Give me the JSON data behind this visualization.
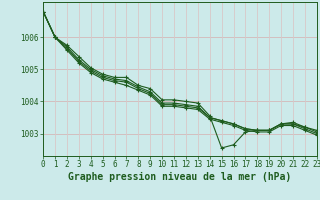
{
  "title": "Graphe pression niveau de la mer (hPa)",
  "background_color": "#cceaea",
  "grid_color_h": "#d4b8b8",
  "grid_color_v": "#d8c8c8",
  "line_color": "#1e5c1e",
  "marker_color": "#1e5c1e",
  "xlim": [
    0,
    23
  ],
  "ylim": [
    1002.3,
    1007.1
  ],
  "yticks": [
    1003,
    1004,
    1005,
    1006
  ],
  "xticks": [
    0,
    1,
    2,
    3,
    4,
    5,
    6,
    7,
    8,
    9,
    10,
    11,
    12,
    13,
    14,
    15,
    16,
    17,
    18,
    19,
    20,
    21,
    22,
    23
  ],
  "series": [
    {
      "x": [
        0,
        1,
        2,
        3,
        4,
        5,
        6,
        7,
        8,
        9,
        10,
        11,
        12,
        13,
        14,
        15,
        16,
        17,
        18,
        19,
        20,
        21,
        22,
        23
      ],
      "y": [
        1006.8,
        1006.0,
        1005.75,
        1005.4,
        1005.05,
        1004.85,
        1004.75,
        1004.75,
        1004.5,
        1004.4,
        1004.05,
        1004.05,
        1004.0,
        1003.95,
        1003.55,
        1002.55,
        1002.65,
        1003.05,
        1003.1,
        1003.1,
        1003.3,
        1003.35,
        1003.2,
        1003.1
      ]
    },
    {
      "x": [
        0,
        1,
        2,
        3,
        4,
        5,
        6,
        7,
        8,
        9,
        10,
        11,
        12,
        13,
        14,
        15,
        16,
        17,
        18,
        19,
        20,
        21,
        22,
        23
      ],
      "y": [
        1006.8,
        1006.0,
        1005.7,
        1005.3,
        1005.0,
        1004.8,
        1004.7,
        1004.65,
        1004.45,
        1004.3,
        1003.95,
        1003.95,
        1003.9,
        1003.85,
        1003.5,
        1003.4,
        1003.3,
        1003.15,
        1003.1,
        1003.1,
        1003.3,
        1003.3,
        1003.2,
        1003.05
      ]
    },
    {
      "x": [
        0,
        1,
        2,
        3,
        4,
        5,
        6,
        7,
        8,
        9,
        10,
        11,
        12,
        13,
        14,
        15,
        16,
        17,
        18,
        19,
        20,
        21,
        22,
        23
      ],
      "y": [
        1006.8,
        1006.0,
        1005.65,
        1005.25,
        1004.95,
        1004.75,
        1004.65,
        1004.6,
        1004.4,
        1004.25,
        1003.9,
        1003.9,
        1003.85,
        1003.8,
        1003.5,
        1003.4,
        1003.3,
        1003.15,
        1003.1,
        1003.1,
        1003.3,
        1003.3,
        1003.15,
        1003.0
      ]
    },
    {
      "x": [
        0,
        1,
        2,
        3,
        4,
        5,
        6,
        7,
        8,
        9,
        10,
        11,
        12,
        13,
        14,
        15,
        16,
        17,
        18,
        19,
        20,
        21,
        22,
        23
      ],
      "y": [
        1006.8,
        1006.0,
        1005.6,
        1005.2,
        1004.9,
        1004.7,
        1004.6,
        1004.5,
        1004.35,
        1004.2,
        1003.85,
        1003.85,
        1003.8,
        1003.75,
        1003.45,
        1003.35,
        1003.25,
        1003.1,
        1003.05,
        1003.05,
        1003.25,
        1003.25,
        1003.1,
        1002.95
      ]
    }
  ],
  "title_color": "#1e5c1e",
  "title_fontsize": 7,
  "tick_fontsize": 5.5,
  "tick_color": "#1e5c1e",
  "axis_color": "#1e5c1e"
}
